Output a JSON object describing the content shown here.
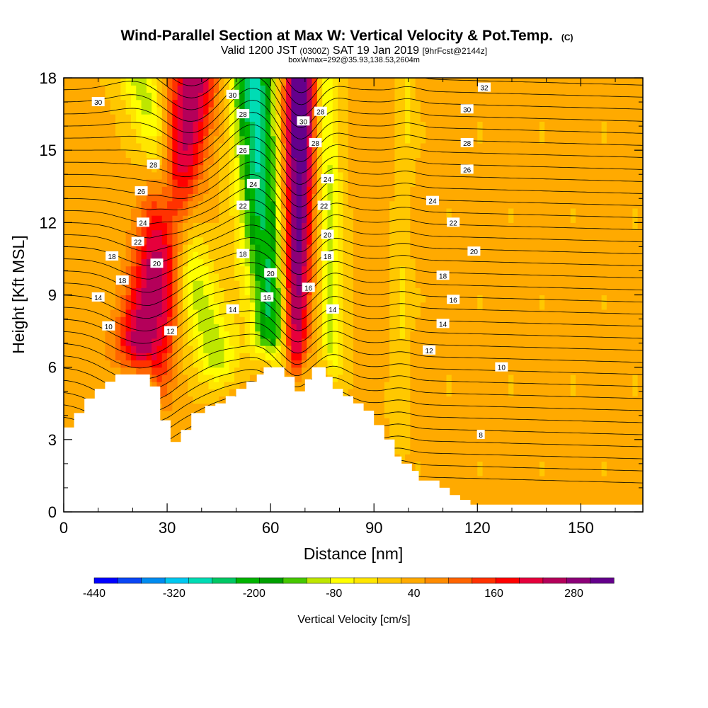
{
  "title": {
    "main": "Wind-Parallel Section at Max W: Vertical Velocity & Pot.Temp.",
    "main_tag": "(C)",
    "valid_a": "Valid 1200 JST",
    "valid_tz": "(0300Z)",
    "valid_b": "SAT 19 Jan 2019",
    "valid_fcst": "[9hrFcst@2144z]",
    "box_info": "boxWmax=292@35.93,138.53,2604m"
  },
  "chart_data": {
    "type": "heatmap",
    "xlabel": "Distance [nm]",
    "ylabel": "Height [Kft MSL]",
    "xlim": [
      0,
      168
    ],
    "ylim": [
      0,
      18
    ],
    "x_ticks": [
      0,
      30,
      60,
      90,
      120,
      150
    ],
    "y_ticks": [
      0,
      3,
      6,
      9,
      12,
      15,
      18
    ],
    "colorbar": {
      "label": "Vertical Velocity [cm/s]",
      "tick_labels": [
        "-440",
        "-320",
        "-200",
        "-80",
        "40",
        "160",
        "280"
      ],
      "tick_values": [
        -440,
        -320,
        -200,
        -80,
        40,
        160,
        280
      ],
      "range": [
        -440,
        340
      ],
      "colors": [
        "#0000ff",
        "#0a46f5",
        "#008cf0",
        "#00c8f0",
        "#00dcb4",
        "#00c864",
        "#00b400",
        "#00a000",
        "#46c800",
        "#bee600",
        "#ffff00",
        "#ffe600",
        "#ffc800",
        "#ffaa00",
        "#ff8c00",
        "#ff6400",
        "#ff3200",
        "#ff0000",
        "#e6003c",
        "#b4005a",
        "#8c0078",
        "#64008c"
      ]
    },
    "velocity_bands": [
      {
        "name": "updraft",
        "x_base": 20,
        "x_top": 38,
        "width": 7,
        "w": 240
      },
      {
        "name": "downdraft",
        "x_base": 48,
        "x_top": 22,
        "width": 6,
        "w": -130
      },
      {
        "name": "updraft",
        "x_base": 52,
        "x_top": 66,
        "width": 4,
        "w": 40
      },
      {
        "name": "downdraft",
        "x_base": 62,
        "x_top": 55,
        "width": 6.5,
        "w": -300
      },
      {
        "name": "updraft",
        "x_base": 66,
        "x_top": 69,
        "width": 4.5,
        "w": 330
      },
      {
        "name": "downdraft",
        "x_base": 78,
        "x_top": 76,
        "width": 3.5,
        "w": -120
      },
      {
        "name": "downdraft",
        "x_base": 97,
        "x_top": 100,
        "width": 2.5,
        "w": -40
      }
    ],
    "terrain": [
      [
        0,
        3.5
      ],
      [
        3,
        4.1
      ],
      [
        6,
        4.7
      ],
      [
        9,
        5.1
      ],
      [
        12,
        5.4
      ],
      [
        15,
        5.7
      ],
      [
        25,
        5.2
      ],
      [
        28,
        3.8
      ],
      [
        31,
        2.9
      ],
      [
        34,
        3.4
      ],
      [
        37,
        4.1
      ],
      [
        41,
        4.4
      ],
      [
        44,
        4.5
      ],
      [
        47,
        4.8
      ],
      [
        50,
        5.1
      ],
      [
        53,
        5.4
      ],
      [
        56,
        5.7
      ],
      [
        58,
        6.0
      ],
      [
        64,
        5.6
      ],
      [
        67,
        5.0
      ],
      [
        70,
        5.5
      ],
      [
        72,
        6.0
      ],
      [
        76,
        5.6
      ],
      [
        78,
        5.1
      ],
      [
        81,
        4.8
      ],
      [
        84,
        4.5
      ],
      [
        87,
        4.2
      ],
      [
        90,
        3.6
      ],
      [
        93,
        3.0
      ],
      [
        96,
        2.3
      ],
      [
        98,
        2.0
      ],
      [
        101,
        1.7
      ],
      [
        103,
        1.3
      ],
      [
        109,
        1.0
      ],
      [
        112,
        0.7
      ],
      [
        115,
        0.5
      ],
      [
        118,
        0.3
      ],
      [
        168,
        0.3
      ]
    ],
    "theta_labels": [
      {
        "text": "30",
        "x": 10,
        "y": 17.0
      },
      {
        "text": "30",
        "x": 49,
        "y": 17.3
      },
      {
        "text": "28",
        "x": 52,
        "y": 16.5
      },
      {
        "text": "26",
        "x": 52,
        "y": 15.0
      },
      {
        "text": "28",
        "x": 26,
        "y": 14.4
      },
      {
        "text": "26",
        "x": 22.5,
        "y": 13.3
      },
      {
        "text": "24",
        "x": 23,
        "y": 12.0
      },
      {
        "text": "22",
        "x": 21.5,
        "y": 11.2
      },
      {
        "text": "20",
        "x": 27,
        "y": 10.3
      },
      {
        "text": "18",
        "x": 14,
        "y": 10.6
      },
      {
        "text": "18",
        "x": 17,
        "y": 9.6
      },
      {
        "text": "14",
        "x": 10,
        "y": 8.9
      },
      {
        "text": "10",
        "x": 13,
        "y": 7.7
      },
      {
        "text": "12",
        "x": 31,
        "y": 7.5
      },
      {
        "text": "24",
        "x": 55,
        "y": 13.6
      },
      {
        "text": "22",
        "x": 52,
        "y": 12.7
      },
      {
        "text": "18",
        "x": 52,
        "y": 10.7
      },
      {
        "text": "14",
        "x": 49,
        "y": 8.4
      },
      {
        "text": "20",
        "x": 60,
        "y": 9.9
      },
      {
        "text": "16",
        "x": 59,
        "y": 8.9
      },
      {
        "text": "30",
        "x": 69.5,
        "y": 16.2
      },
      {
        "text": "28",
        "x": 74.5,
        "y": 16.6
      },
      {
        "text": "28",
        "x": 73,
        "y": 15.3
      },
      {
        "text": "24",
        "x": 76.5,
        "y": 13.8
      },
      {
        "text": "22",
        "x": 75.5,
        "y": 12.7
      },
      {
        "text": "20",
        "x": 76.5,
        "y": 11.5
      },
      {
        "text": "18",
        "x": 76.5,
        "y": 10.6
      },
      {
        "text": "16",
        "x": 71,
        "y": 9.3
      },
      {
        "text": "14",
        "x": 78,
        "y": 8.4
      },
      {
        "text": "32",
        "x": 122,
        "y": 17.6
      },
      {
        "text": "30",
        "x": 117,
        "y": 16.7
      },
      {
        "text": "28",
        "x": 117,
        "y": 15.3
      },
      {
        "text": "26",
        "x": 117,
        "y": 14.2
      },
      {
        "text": "24",
        "x": 107,
        "y": 12.9
      },
      {
        "text": "22",
        "x": 113,
        "y": 12.0
      },
      {
        "text": "20",
        "x": 119,
        "y": 10.8
      },
      {
        "text": "18",
        "x": 110,
        "y": 9.8
      },
      {
        "text": "16",
        "x": 113,
        "y": 8.8
      },
      {
        "text": "14",
        "x": 110,
        "y": 7.8
      },
      {
        "text": "12",
        "x": 106,
        "y": 6.7
      },
      {
        "text": "10",
        "x": 127,
        "y": 6.0
      },
      {
        "text": "8",
        "x": 121,
        "y": 3.2
      }
    ]
  }
}
